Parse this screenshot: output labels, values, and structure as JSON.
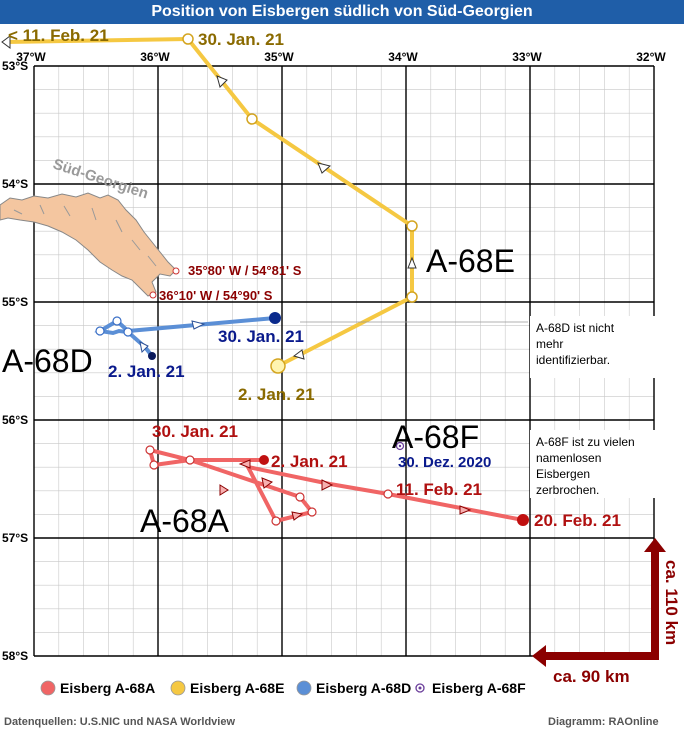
{
  "title": "Position von Eisbergen südlich von Süd-Georgien",
  "longitude_labels": [
    "37°W",
    "36°W",
    "35°W",
    "34°W",
    "33°W",
    "32°W"
  ],
  "latitude_labels": [
    "53°S",
    "54°S",
    "55°S",
    "56°S",
    "57°S",
    "58°S"
  ],
  "island_label": "Süd-Georgien",
  "coordinates": {
    "point1": "35°80' W  / 54°81' S",
    "point2": "36°10' W  / 54°90' S"
  },
  "iceberg_names": {
    "A68E": "A-68E",
    "A68D": "A-68D",
    "A68F": "A-68F",
    "A68A": "A-68A"
  },
  "dates": {
    "e_start": "< 11. Feb.  21",
    "e_jan30": "30. Jan. 21",
    "e_jan2": "2. Jan. 21",
    "d_jan30": "30. Jan. 21",
    "d_jan2": "2. Jan. 21",
    "f_dec30": "30. Dez. 2020",
    "a_jan30": "30. Jan. 21",
    "a_jan2": "2. Jan. 21",
    "a_feb11": "11. Feb. 21",
    "a_feb20": "20. Feb. 21"
  },
  "notes": {
    "d_note": [
      "A-68D ist nicht",
      "mehr",
      "identifizierbar."
    ],
    "f_note": [
      "A-68F ist zu vielen",
      "namenlosen",
      "Eisbergen",
      "zerbrochen."
    ]
  },
  "scale": {
    "vertical": "ca. 110 km",
    "horizontal": "ca. 90 km"
  },
  "legend": [
    {
      "label": "Eisberg A-68A",
      "color": "#f06565"
    },
    {
      "label": "Eisberg A-68E",
      "color": "#f5c842"
    },
    {
      "label": "Eisberg A-68D",
      "color": "#5b8fd6"
    },
    {
      "label": "Eisberg A-68F",
      "color": "#6a3d9a"
    }
  ],
  "footer": {
    "source": "Datenquellen: U.S.NIC und NASA Worldview",
    "credit": "Diagramm: RAOnline"
  },
  "colors": {
    "title_bg": "#1f5ea8",
    "track_a": "#f06565",
    "track_e": "#f5c842",
    "track_d": "#5b8fd6",
    "label_red": "#b01010",
    "label_gold": "#8a6a00",
    "label_navy": "#0a1a8c",
    "scale_arrow": "#8b0000",
    "island": "#f4c6a0"
  }
}
